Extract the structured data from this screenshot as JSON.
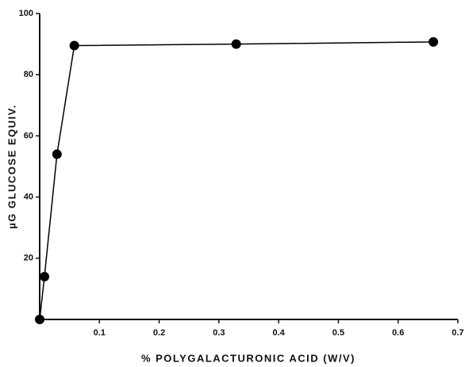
{
  "chart_data": {
    "type": "line",
    "x_label": "% POLYGALACTURONIC ACID (W/V)",
    "y_label": "µG GLUCOSE EQUIV.",
    "x": [
      0,
      0.008,
      0.029,
      0.058,
      0.329,
      0.659
    ],
    "series": [
      {
        "color": "#000000",
        "values": [
          0,
          14,
          54,
          89.5,
          90,
          90.7
        ]
      }
    ],
    "xlim": [
      0,
      0.7
    ],
    "xticks": [
      0.1,
      0.2,
      0.3,
      0.4,
      0.5,
      0.6,
      0.7
    ],
    "ylim": [
      0,
      100
    ],
    "yticks": [
      20,
      40,
      60,
      80,
      100
    ],
    "grid": false
  }
}
